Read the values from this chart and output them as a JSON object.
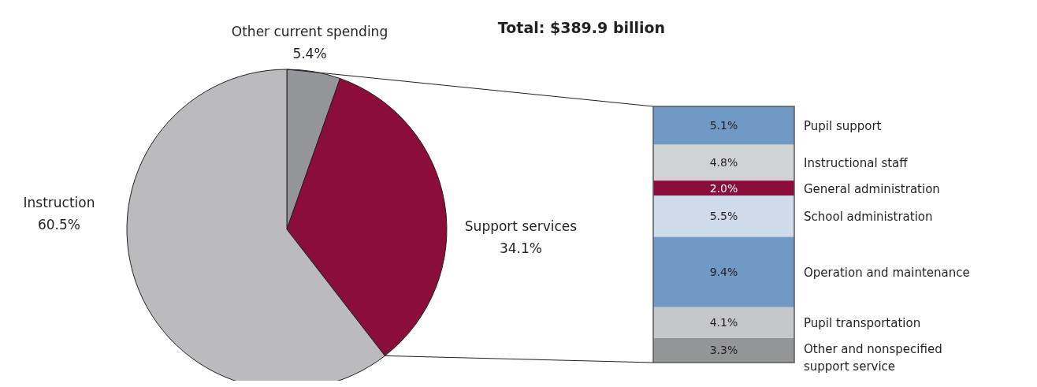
{
  "chart_data": [
    {
      "type": "pie",
      "title": "Total: $389.9 billion",
      "categories": [
        "Other current spending",
        "Support services",
        "Instruction"
      ],
      "values": [
        5.4,
        34.1,
        60.5
      ],
      "value_labels": [
        "5.4%",
        "34.1%",
        "60.5%"
      ],
      "colors": [
        "#939598",
        "#8b0e3a",
        "#bbbbbd"
      ]
    },
    {
      "type": "bar",
      "stacked": true,
      "categories": [
        null
      ],
      "series": [
        {
          "name": "Other and nonspecified support service",
          "color": "#939598",
          "values": [
            3.3
          ],
          "value_labels": [
            "3.3%"
          ]
        },
        {
          "name": "Pupil transportation",
          "color": "#c6c7c9",
          "values": [
            4.1
          ],
          "value_labels": [
            "4.1%"
          ]
        },
        {
          "name": "Operation and maintenance",
          "color": "#7099c6",
          "values": [
            9.4
          ],
          "value_labels": [
            "9.4%"
          ]
        },
        {
          "name": "School administration",
          "color": "#cfdaea",
          "values": [
            5.5
          ],
          "value_labels": [
            "5.5%"
          ]
        },
        {
          "name": "General administration",
          "color": "#8b0e3a",
          "values": [
            2.0
          ],
          "value_labels": [
            "2.0%"
          ]
        },
        {
          "name": "Instructional staff",
          "color": "#d1d2d4",
          "values": [
            4.8
          ],
          "value_labels": [
            "4.8%"
          ]
        },
        {
          "name": "Pupil support",
          "color": "#7099c6",
          "values": [
            5.1
          ],
          "value_labels": [
            "5.1%"
          ]
        }
      ]
    }
  ]
}
